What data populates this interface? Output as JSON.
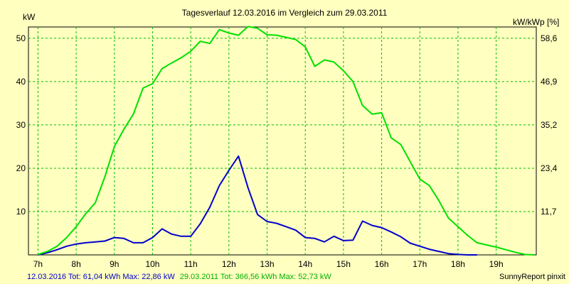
{
  "chart_data": {
    "type": "line",
    "title": "Tagesverlauf 12.03.2016 im Vergleich zum 29.03.2011",
    "left_unit": "kW",
    "right_unit": "kW/kWp [%]",
    "x_ticks": [
      "7h",
      "8h",
      "9h",
      "10h",
      "11h",
      "12h",
      "13h",
      "14h",
      "15h",
      "16h",
      "17h",
      "18h",
      "19h"
    ],
    "y_ticks": [
      10,
      20,
      30,
      40,
      50
    ],
    "y_right_ticks": [
      "11,7",
      "23,4",
      "35,2",
      "46,9",
      "58,6"
    ],
    "xlim": [
      6.75,
      20.05
    ],
    "ylim": [
      0,
      52.6
    ],
    "grid": true,
    "series": [
      {
        "name": "12.03.2016 Tot: 61,04 kWh Max: 22,86 kW",
        "color": "#0000cc",
        "points": [
          [
            7.0,
            0
          ],
          [
            7.25,
            0.5
          ],
          [
            7.5,
            1.2
          ],
          [
            7.75,
            2.0
          ],
          [
            8.0,
            2.5
          ],
          [
            8.25,
            2.8
          ],
          [
            8.5,
            3.0
          ],
          [
            8.75,
            3.2
          ],
          [
            9.0,
            4.0
          ],
          [
            9.25,
            3.8
          ],
          [
            9.5,
            2.8
          ],
          [
            9.75,
            2.8
          ],
          [
            10.0,
            4.0
          ],
          [
            10.25,
            6.0
          ],
          [
            10.5,
            4.8
          ],
          [
            10.75,
            4.3
          ],
          [
            11.0,
            4.3
          ],
          [
            11.25,
            7.2
          ],
          [
            11.5,
            11.0
          ],
          [
            11.75,
            16.0
          ],
          [
            12.0,
            19.5
          ],
          [
            12.25,
            22.8
          ],
          [
            12.5,
            15.5
          ],
          [
            12.75,
            9.3
          ],
          [
            13.0,
            7.7
          ],
          [
            13.25,
            7.3
          ],
          [
            13.5,
            6.5
          ],
          [
            13.75,
            5.7
          ],
          [
            14.0,
            4.0
          ],
          [
            14.25,
            3.8
          ],
          [
            14.5,
            3.0
          ],
          [
            14.75,
            4.3
          ],
          [
            15.0,
            3.3
          ],
          [
            15.25,
            3.4
          ],
          [
            15.5,
            7.8
          ],
          [
            15.75,
            6.8
          ],
          [
            16.0,
            6.3
          ],
          [
            16.25,
            5.3
          ],
          [
            16.5,
            4.2
          ],
          [
            16.75,
            2.7
          ],
          [
            17.0,
            2.0
          ],
          [
            17.25,
            1.3
          ],
          [
            17.5,
            0.8
          ],
          [
            17.75,
            0.3
          ],
          [
            18.0,
            0.1
          ],
          [
            18.25,
            0
          ],
          [
            18.5,
            0
          ]
        ]
      },
      {
        "name": "29.03.2011 Tot: 366,56 kWh Max: 52,73 kW",
        "color": "#00e000",
        "points": [
          [
            7.0,
            0.1
          ],
          [
            7.25,
            0.8
          ],
          [
            7.5,
            2.0
          ],
          [
            7.75,
            4.0
          ],
          [
            8.0,
            6.5
          ],
          [
            8.25,
            9.5
          ],
          [
            8.5,
            12.0
          ],
          [
            8.75,
            18.0
          ],
          [
            9.0,
            25.0
          ],
          [
            9.25,
            29.0
          ],
          [
            9.5,
            32.5
          ],
          [
            9.75,
            38.5
          ],
          [
            10.0,
            39.5
          ],
          [
            10.25,
            43.0
          ],
          [
            10.5,
            44.3
          ],
          [
            10.75,
            45.5
          ],
          [
            11.0,
            47.0
          ],
          [
            11.25,
            49.3
          ],
          [
            11.5,
            48.8
          ],
          [
            11.75,
            52.0
          ],
          [
            12.0,
            51.2
          ],
          [
            12.25,
            50.7
          ],
          [
            12.5,
            52.7
          ],
          [
            12.75,
            52.3
          ],
          [
            13.0,
            50.8
          ],
          [
            13.25,
            50.7
          ],
          [
            13.5,
            50.2
          ],
          [
            13.75,
            49.7
          ],
          [
            14.0,
            48.0
          ],
          [
            14.25,
            43.5
          ],
          [
            14.5,
            45.0
          ],
          [
            14.75,
            44.5
          ],
          [
            15.0,
            42.5
          ],
          [
            15.25,
            40.0
          ],
          [
            15.5,
            34.5
          ],
          [
            15.75,
            32.5
          ],
          [
            16.0,
            32.8
          ],
          [
            16.25,
            27.0
          ],
          [
            16.5,
            25.5
          ],
          [
            16.75,
            21.5
          ],
          [
            17.0,
            17.5
          ],
          [
            17.25,
            16.0
          ],
          [
            17.5,
            12.5
          ],
          [
            17.75,
            8.5
          ],
          [
            18.0,
            6.5
          ],
          [
            18.25,
            4.5
          ],
          [
            18.5,
            2.8
          ],
          [
            18.75,
            2.3
          ],
          [
            19.0,
            1.8
          ],
          [
            19.25,
            1.2
          ],
          [
            19.5,
            0.6
          ],
          [
            19.75,
            0.1
          ],
          [
            20.0,
            0
          ]
        ]
      }
    ]
  },
  "footer": {
    "legend_1": "12.03.2016 Tot: 61,04 kWh Max: 22,86 kW",
    "legend_2": "29.03.2011 Tot: 366,56 kWh Max: 52,73 kW",
    "credit": "SunnyReport pinxit"
  }
}
